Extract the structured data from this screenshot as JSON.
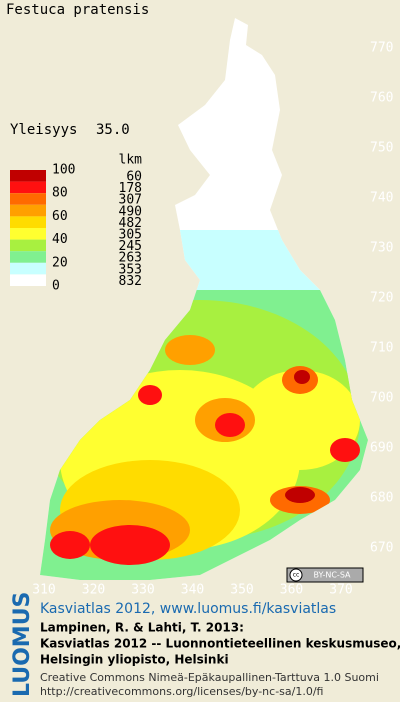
{
  "title": "Festuca pratensis",
  "frequency": {
    "label": "Yleisyys",
    "value": "35.0"
  },
  "legend": {
    "count_header": "lkm",
    "scale_labels": [
      "100",
      "80",
      "60",
      "40",
      "20",
      "0"
    ],
    "classes": [
      {
        "color": "#c00000",
        "count": "60"
      },
      {
        "color": "#ff1010",
        "count": "178"
      },
      {
        "color": "#ff6a00",
        "count": "307"
      },
      {
        "color": "#ffa000",
        "count": "490"
      },
      {
        "color": "#ffdc00",
        "count": "482"
      },
      {
        "color": "#ffff30",
        "count": "305"
      },
      {
        "color": "#a8f040",
        "count": "245"
      },
      {
        "color": "#80f090",
        "count": "263"
      },
      {
        "color": "#c8ffff",
        "count": "353"
      },
      {
        "color": "#ffffff",
        "count": "832"
      }
    ]
  },
  "grid_labels": {
    "north": [
      "770",
      "760",
      "750",
      "740",
      "730",
      "720",
      "710",
      "700",
      "690",
      "680",
      "670"
    ],
    "east": [
      "310",
      "320",
      "330",
      "340",
      "350",
      "360",
      "370"
    ]
  },
  "license_badge": "BY-NC-SA",
  "footer": {
    "logo": "LUOMUS",
    "link": "Kasviatlas 2012, www.luomus.fi/kasviatlas",
    "citation": [
      "Lampinen, R. & Lahti, T. 2013:",
      "Kasviatlas 2012 -- Luonnontieteellinen keskusmuseo,",
      "Helsingin yliopisto, Helsinki"
    ],
    "license": [
      "Creative Commons Nimeä-Epäkaupallinen-Tarttuva 1.0 Suomi",
      "http://creativecommons.org/licenses/by-nc-sa/1.0/fi"
    ]
  }
}
